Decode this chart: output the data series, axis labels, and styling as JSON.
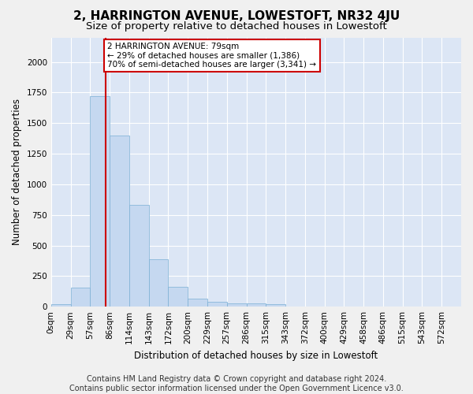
{
  "title": "2, HARRINGTON AVENUE, LOWESTOFT, NR32 4JU",
  "subtitle": "Size of property relative to detached houses in Lowestoft",
  "xlabel": "Distribution of detached houses by size in Lowestoft",
  "ylabel": "Number of detached properties",
  "bar_values": [
    20,
    155,
    1720,
    1400,
    830,
    385,
    163,
    65,
    38,
    28,
    28,
    18,
    0,
    0,
    0,
    0,
    0,
    0,
    0,
    0,
    0
  ],
  "bar_labels": [
    "0sqm",
    "29sqm",
    "57sqm",
    "86sqm",
    "114sqm",
    "143sqm",
    "172sqm",
    "200sqm",
    "229sqm",
    "257sqm",
    "286sqm",
    "315sqm",
    "343sqm",
    "372sqm",
    "400sqm",
    "429sqm",
    "458sqm",
    "486sqm",
    "515sqm",
    "543sqm",
    "572sqm"
  ],
  "bar_color": "#c5d8f0",
  "bar_edgecolor": "#7bafd4",
  "background_color": "#dce6f5",
  "grid_color": "#ffffff",
  "vline_x": 2,
  "vline_color": "#cc0000",
  "annotation_text": "2 HARRINGTON AVENUE: 79sqm\n← 29% of detached houses are smaller (1,386)\n70% of semi-detached houses are larger (3,341) →",
  "annotation_box_color": "#ffffff",
  "annotation_box_edgecolor": "#cc0000",
  "ylim": [
    0,
    2200
  ],
  "n_bins": 21,
  "bin_width": 1,
  "footer_text": "Contains HM Land Registry data © Crown copyright and database right 2024.\nContains public sector information licensed under the Open Government Licence v3.0.",
  "title_fontsize": 11,
  "subtitle_fontsize": 9.5,
  "axis_label_fontsize": 8.5,
  "tick_fontsize": 7.5,
  "annotation_fontsize": 7.5,
  "footer_fontsize": 7,
  "ylabel_fontsize": 8.5
}
